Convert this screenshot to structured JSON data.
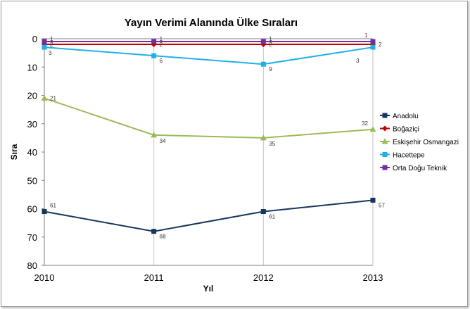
{
  "chart_data": {
    "type": "line",
    "title": "Yayın Verimi Alanında Ülke Sıraları",
    "xlabel": "Yıl",
    "ylabel": "Sıra",
    "x": [
      "2010",
      "2011",
      "2012",
      "2013"
    ],
    "ylim": [
      0,
      80
    ],
    "y_reversed": true,
    "y_ticks": [
      "0",
      "10",
      "20",
      "30",
      "40",
      "50",
      "60",
      "70",
      "80"
    ],
    "grid": {
      "vertical": true,
      "horizontal": false
    },
    "legend_position": "right",
    "series": [
      {
        "name": "Anadolu",
        "color": "#17365d",
        "marker": "square",
        "values": [
          61,
          68,
          61,
          57
        ],
        "labels": [
          "61",
          "68",
          "61",
          "57"
        ]
      },
      {
        "name": "Boğaziçi",
        "color": "#c00000",
        "marker": "diamond",
        "values": [
          2,
          2,
          2,
          2
        ],
        "labels": [
          "2",
          "2",
          "2",
          "2"
        ]
      },
      {
        "name": "Eskişehir Osmangazi",
        "color": "#9bbb59",
        "marker": "triangle",
        "values": [
          21,
          34,
          35,
          32
        ],
        "labels": [
          "21",
          "34",
          "35",
          "32"
        ]
      },
      {
        "name": "Hacettepe",
        "color": "#1fb0e8",
        "marker": "square",
        "values": [
          3,
          6,
          9,
          3
        ],
        "labels": [
          "3",
          "6",
          "9",
          "3"
        ]
      },
      {
        "name": "Orta Doğu Teknik",
        "color": "#7030a0",
        "marker": "square",
        "values": [
          1,
          1,
          1,
          1
        ],
        "labels": [
          "1",
          "1",
          "1",
          "1"
        ]
      }
    ]
  }
}
